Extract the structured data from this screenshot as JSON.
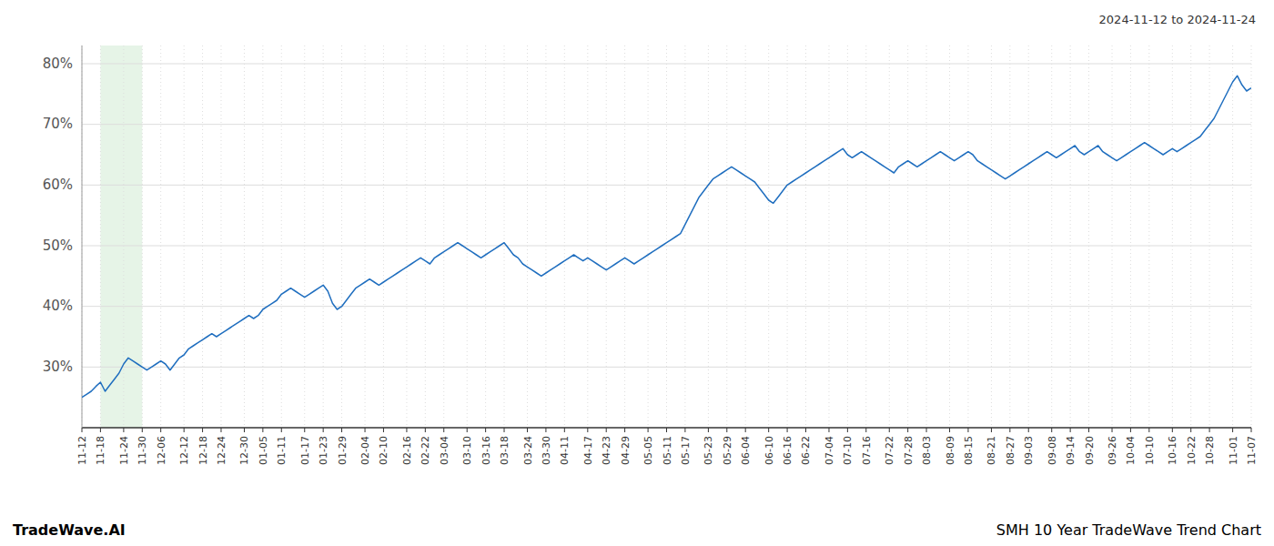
{
  "chart_data": {
    "type": "line",
    "title": "SMH 10 Year TradeWave Trend Chart",
    "subtitle": "2024-11-12 to 2024-11-24",
    "annotations": [
      "TradeWave.AI"
    ],
    "color": "#1f6ebf",
    "grid": true,
    "ylim": [
      20,
      83
    ],
    "yticks": [
      {
        "value": 30,
        "label": "30%"
      },
      {
        "value": 40,
        "label": "40%"
      },
      {
        "value": 50,
        "label": "50%"
      },
      {
        "value": 60,
        "label": "60%"
      },
      {
        "value": 70,
        "label": "70%"
      },
      {
        "value": 80,
        "label": "80%"
      }
    ],
    "shaded_range": {
      "from": "11-18",
      "to": "11-30",
      "color": "#c8e6c9"
    },
    "categories": [
      "11-12",
      null,
      null,
      null,
      "11-18",
      null,
      null,
      null,
      null,
      "11-24",
      null,
      null,
      null,
      "11-30",
      null,
      null,
      null,
      "12-06",
      null,
      null,
      null,
      null,
      "12-12",
      null,
      null,
      null,
      "12-18",
      null,
      null,
      null,
      "12-24",
      null,
      null,
      null,
      null,
      "12-30",
      null,
      null,
      null,
      "01-05",
      null,
      null,
      null,
      "01-11",
      null,
      null,
      null,
      null,
      "01-17",
      null,
      null,
      null,
      "01-23",
      null,
      null,
      null,
      "01-29",
      null,
      null,
      null,
      null,
      "02-04",
      null,
      null,
      null,
      "02-10",
      null,
      null,
      null,
      null,
      "02-16",
      null,
      null,
      null,
      "02-22",
      null,
      null,
      null,
      "03-04",
      null,
      null,
      null,
      null,
      "03-10",
      null,
      null,
      null,
      "03-16",
      null,
      null,
      null,
      "03-18",
      null,
      null,
      null,
      null,
      "03-24",
      null,
      null,
      null,
      "03-30",
      null,
      null,
      null,
      "04-11",
      null,
      null,
      null,
      null,
      "04-17",
      null,
      null,
      null,
      "04-23",
      null,
      null,
      null,
      "04-29",
      null,
      null,
      null,
      null,
      "05-05",
      null,
      null,
      null,
      "05-11",
      null,
      null,
      null,
      "05-17",
      null,
      null,
      null,
      null,
      "05-23",
      null,
      null,
      null,
      "05-29",
      null,
      null,
      null,
      "06-04",
      null,
      null,
      null,
      null,
      "06-10",
      null,
      null,
      null,
      "06-16",
      null,
      null,
      null,
      "06-22",
      null,
      null,
      null,
      null,
      "07-04",
      null,
      null,
      null,
      "07-10",
      null,
      null,
      null,
      "07-16",
      null,
      null,
      null,
      null,
      "07-22",
      null,
      null,
      null,
      "07-28",
      null,
      null,
      null,
      "08-03",
      null,
      null,
      null,
      null,
      "08-09",
      null,
      null,
      null,
      "08-15",
      null,
      null,
      null,
      null,
      "08-21",
      null,
      null,
      null,
      "08-27",
      null,
      null,
      null,
      "09-03",
      null,
      null,
      null,
      null,
      "09-08",
      null,
      null,
      null,
      "09-14",
      null,
      null,
      null,
      "09-20",
      null,
      null,
      null,
      null,
      "09-26",
      null,
      null,
      null,
      "10-04",
      null,
      null,
      null,
      "10-10",
      null,
      null,
      null,
      null,
      "10-16",
      null,
      null,
      null,
      "10-22",
      null,
      null,
      null,
      "10-28",
      null,
      null,
      null,
      null,
      "11-01",
      null,
      null,
      null,
      "11-07"
    ],
    "values": [
      25.0,
      25.5,
      26.0,
      26.8,
      27.5,
      26.0,
      27.0,
      28.0,
      29.0,
      30.5,
      31.5,
      31.0,
      30.5,
      30.0,
      29.5,
      30.0,
      30.5,
      31.0,
      30.5,
      29.5,
      30.5,
      31.5,
      32.0,
      33.0,
      33.5,
      34.0,
      34.5,
      35.0,
      35.5,
      35.0,
      35.5,
      36.0,
      36.5,
      37.0,
      37.5,
      38.0,
      38.5,
      38.0,
      38.5,
      39.5,
      40.0,
      40.5,
      41.0,
      42.0,
      42.5,
      43.0,
      42.5,
      42.0,
      41.5,
      42.0,
      42.5,
      43.0,
      43.5,
      42.5,
      40.5,
      39.5,
      40.0,
      41.0,
      42.0,
      43.0,
      43.5,
      44.0,
      44.5,
      44.0,
      43.5,
      44.0,
      44.5,
      45.0,
      45.5,
      46.0,
      46.5,
      47.0,
      47.5,
      48.0,
      47.5,
      47.0,
      48.0,
      48.5,
      49.0,
      49.5,
      50.0,
      50.5,
      50.0,
      49.5,
      49.0,
      48.5,
      48.0,
      48.5,
      49.0,
      49.5,
      50.0,
      50.5,
      49.5,
      48.5,
      48.0,
      47.0,
      46.5,
      46.0,
      45.5,
      45.0,
      45.5,
      46.0,
      46.5,
      47.0,
      47.5,
      48.0,
      48.5,
      48.0,
      47.5,
      48.0,
      47.5,
      47.0,
      46.5,
      46.0,
      46.5,
      47.0,
      47.5,
      48.0,
      47.5,
      47.0,
      47.5,
      48.0,
      48.5,
      49.0,
      49.5,
      50.0,
      50.5,
      51.0,
      51.5,
      52.0,
      53.5,
      55.0,
      56.5,
      58.0,
      59.0,
      60.0,
      61.0,
      61.5,
      62.0,
      62.5,
      63.0,
      62.5,
      62.0,
      61.5,
      61.0,
      60.5,
      59.5,
      58.5,
      57.5,
      57.0,
      58.0,
      59.0,
      60.0,
      60.5,
      61.0,
      61.5,
      62.0,
      62.5,
      63.0,
      63.5,
      64.0,
      64.5,
      65.0,
      65.5,
      66.0,
      65.0,
      64.5,
      65.0,
      65.5,
      65.0,
      64.5,
      64.0,
      63.5,
      63.0,
      62.5,
      62.0,
      63.0,
      63.5,
      64.0,
      63.5,
      63.0,
      63.5,
      64.0,
      64.5,
      65.0,
      65.5,
      65.0,
      64.5,
      64.0,
      64.5,
      65.0,
      65.5,
      65.0,
      64.0,
      63.5,
      63.0,
      62.5,
      62.0,
      61.5,
      61.0,
      61.5,
      62.0,
      62.5,
      63.0,
      63.5,
      64.0,
      64.5,
      65.0,
      65.5,
      65.0,
      64.5,
      65.0,
      65.5,
      66.0,
      66.5,
      65.5,
      65.0,
      65.5,
      66.0,
      66.5,
      65.5,
      65.0,
      64.5,
      64.0,
      64.5,
      65.0,
      65.5,
      66.0,
      66.5,
      67.0,
      66.5,
      66.0,
      65.5,
      65.0,
      65.5,
      66.0,
      65.5,
      66.0,
      66.5,
      67.0,
      67.5,
      68.0,
      69.0,
      70.0,
      71.0,
      72.5,
      74.0,
      75.5,
      77.0,
      78.0,
      76.5,
      75.5,
      76.0
    ]
  }
}
